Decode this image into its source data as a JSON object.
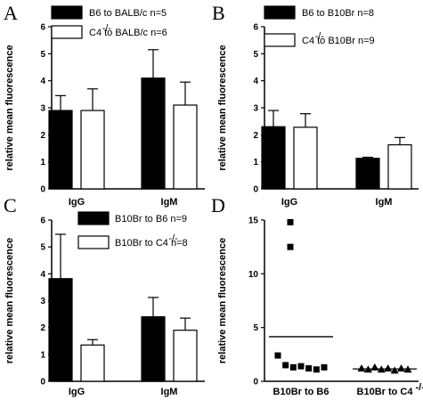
{
  "chart_data": [
    {
      "panel": "A",
      "type": "bar",
      "ylabel": "relative mean fluorescence",
      "ylim": [
        0,
        6
      ],
      "yticks": [
        0,
        1,
        2,
        3,
        4,
        5,
        6
      ],
      "categories": [
        "IgG",
        "IgM"
      ],
      "series": [
        {
          "name": "B6 to BALB/c n=5",
          "legend_text": "B6 to BALB/c n=5",
          "fill": "#000000",
          "values": [
            2.9,
            4.1
          ],
          "errors": [
            0.55,
            1.05
          ]
        },
        {
          "name": "C4-/- to BALB/c n=6",
          "legend_text": "C4   to BALB/c n=6",
          "legend_sup": "-/-",
          "fill": "#ffffff",
          "values": [
            2.9,
            3.1
          ],
          "errors": [
            0.8,
            0.85
          ]
        }
      ]
    },
    {
      "panel": "B",
      "type": "bar",
      "ylabel": "relative mean fluorescence",
      "ylim": [
        0,
        6
      ],
      "yticks": [
        0,
        1,
        2,
        3,
        4,
        5,
        6
      ],
      "categories": [
        "IgG",
        "IgM"
      ],
      "series": [
        {
          "name": "B6 to B10Br n=8",
          "legend_text": "B6 to B10Br n=8",
          "fill": "#000000",
          "values": [
            2.3,
            1.13
          ],
          "errors": [
            0.6,
            0.04
          ]
        },
        {
          "name": "C4-/- to B10Br n=9",
          "legend_text": "C4   to B10Br n=9",
          "legend_sup": "-/-",
          "fill": "#ffffff",
          "values": [
            2.28,
            1.63
          ],
          "errors": [
            0.5,
            0.27
          ]
        }
      ]
    },
    {
      "panel": "C",
      "type": "bar",
      "ylabel": "relative mean fluorescence",
      "ylim": [
        0,
        6
      ],
      "yticks": [
        0,
        1,
        2,
        3,
        4,
        5,
        6
      ],
      "categories": [
        "IgG",
        "IgM"
      ],
      "series": [
        {
          "name": "B10Br to B6 n=9",
          "legend_text": "B10Br to B6 n=9",
          "fill": "#000000",
          "values": [
            3.82,
            2.4
          ],
          "errors": [
            1.65,
            0.72
          ]
        },
        {
          "name": "B10Br to C4-/- n=8",
          "legend_text": "B10Br to C4   n=8",
          "legend_sup": "-/-",
          "fill": "#ffffff",
          "values": [
            1.35,
            1.9
          ],
          "errors": [
            0.2,
            0.45
          ]
        }
      ]
    },
    {
      "panel": "D",
      "type": "scatter",
      "ylabel": "relative mean fluorescence",
      "ylim": [
        0,
        15
      ],
      "yticks": [
        0,
        5,
        10,
        15
      ],
      "categories": [
        "B10Br to B6",
        "B10Br to C4-/-"
      ],
      "category_labels": [
        "B10Br to B6",
        "B10Br to C4"
      ],
      "category_sups": [
        "",
        "-/-"
      ],
      "groups": [
        {
          "name": "B10Br to B6",
          "marker": "square",
          "values": [
            14.8,
            12.5,
            2.4,
            1.5,
            1.3,
            1.4,
            1.2,
            1.1,
            1.3
          ],
          "mean": 4.15
        },
        {
          "name": "B10Br to C4-/-",
          "marker": "triangle",
          "values": [
            1.2,
            1.1,
            1.3,
            1.1,
            1.2,
            1.0,
            1.2,
            1.1
          ],
          "mean": 1.15
        }
      ]
    }
  ]
}
